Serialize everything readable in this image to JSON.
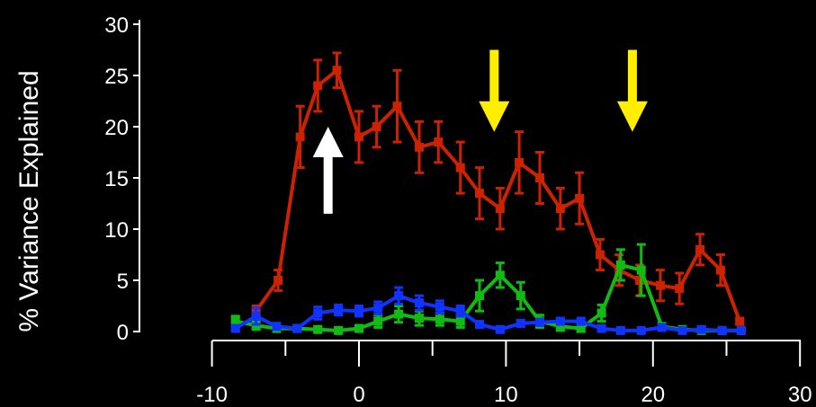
{
  "chart_data": {
    "type": "line",
    "title": "",
    "xlabel": "",
    "ylabel": "% Variance Explained",
    "xlim": [
      -10,
      30
    ],
    "ylim": [
      0,
      30
    ],
    "x_ticks": [
      -10,
      0,
      10,
      20,
      30
    ],
    "x_ticks_minor": [
      -5,
      5,
      15,
      25
    ],
    "y_ticks": [
      0,
      5,
      10,
      15,
      20,
      25,
      30
    ],
    "grid": false,
    "background": "#000000",
    "series": [
      {
        "color": "#cc2200",
        "points": [
          {
            "x": -7,
            "y": 2.0,
            "err": 0.5
          },
          {
            "x": -5.5,
            "y": 5.0,
            "err": 1.0
          },
          {
            "x": -4,
            "y": 19.0,
            "err": 3.0
          },
          {
            "x": -2.8,
            "y": 24.0,
            "err": 2.5
          },
          {
            "x": -1.5,
            "y": 25.5,
            "err": 1.7
          },
          {
            "x": 0,
            "y": 19.0,
            "err": 2.5
          },
          {
            "x": 1.2,
            "y": 20.0,
            "err": 2.0
          },
          {
            "x": 2.6,
            "y": 22.0,
            "err": 3.5
          },
          {
            "x": 4.1,
            "y": 18.0,
            "err": 2.5
          },
          {
            "x": 5.4,
            "y": 18.5,
            "err": 2.0
          },
          {
            "x": 6.9,
            "y": 16.0,
            "err": 2.5
          },
          {
            "x": 8.2,
            "y": 13.5,
            "err": 2.5
          },
          {
            "x": 9.6,
            "y": 12.0,
            "err": 2.0
          },
          {
            "x": 10.9,
            "y": 16.5,
            "err": 3.0
          },
          {
            "x": 12.3,
            "y": 15.0,
            "err": 2.5
          },
          {
            "x": 13.7,
            "y": 12.0,
            "err": 2.0
          },
          {
            "x": 15.0,
            "y": 13.0,
            "err": 2.5
          },
          {
            "x": 16.4,
            "y": 7.5,
            "err": 1.5
          },
          {
            "x": 17.7,
            "y": 6.0,
            "err": 1.5
          },
          {
            "x": 19.1,
            "y": 5.0,
            "err": 1.5
          },
          {
            "x": 20.5,
            "y": 4.5,
            "err": 1.5
          },
          {
            "x": 21.8,
            "y": 4.2,
            "err": 1.5
          },
          {
            "x": 23.2,
            "y": 8.0,
            "err": 1.5
          },
          {
            "x": 24.6,
            "y": 6.0,
            "err": 1.5
          },
          {
            "x": 25.9,
            "y": 1.0,
            "err": 0.3
          }
        ]
      },
      {
        "color": "#11bb11",
        "points": [
          {
            "x": -8.4,
            "y": 1.0,
            "err": 0.5
          },
          {
            "x": -7.0,
            "y": 0.6,
            "err": 0.4
          },
          {
            "x": -5.6,
            "y": 0.3,
            "err": 0.2
          },
          {
            "x": -4.2,
            "y": 0.3,
            "err": 0.2
          },
          {
            "x": -2.8,
            "y": 0.2,
            "err": 0.2
          },
          {
            "x": -1.4,
            "y": 0.1,
            "err": 0.1
          },
          {
            "x": 0,
            "y": 0.3,
            "err": 0.3
          },
          {
            "x": 1.3,
            "y": 1.0,
            "err": 0.6
          },
          {
            "x": 2.7,
            "y": 1.7,
            "err": 0.8
          },
          {
            "x": 4.1,
            "y": 1.3,
            "err": 0.7
          },
          {
            "x": 5.5,
            "y": 1.2,
            "err": 0.6
          },
          {
            "x": 6.9,
            "y": 1.0,
            "err": 0.6
          },
          {
            "x": 8.2,
            "y": 3.5,
            "err": 1.5
          },
          {
            "x": 9.6,
            "y": 5.5,
            "err": 1.2
          },
          {
            "x": 11.0,
            "y": 3.5,
            "err": 1.3
          },
          {
            "x": 12.3,
            "y": 1.0,
            "err": 0.6
          },
          {
            "x": 13.7,
            "y": 0.5,
            "err": 0.4
          },
          {
            "x": 15.1,
            "y": 0.3,
            "err": 0.3
          },
          {
            "x": 16.5,
            "y": 1.8,
            "err": 0.8
          },
          {
            "x": 17.8,
            "y": 6.5,
            "err": 1.5
          },
          {
            "x": 19.2,
            "y": 6.0,
            "err": 2.5
          },
          {
            "x": 20.6,
            "y": 0.5,
            "err": 0.3
          },
          {
            "x": 22.0,
            "y": 0.2,
            "err": 0.2
          },
          {
            "x": 23.3,
            "y": 0.1,
            "err": 0.1
          },
          {
            "x": 24.7,
            "y": 0.1,
            "err": 0.1
          },
          {
            "x": 26.0,
            "y": 0.1,
            "err": 0.1
          }
        ]
      },
      {
        "color": "#1133ff",
        "points": [
          {
            "x": -8.4,
            "y": 0.3,
            "err": 0.2
          },
          {
            "x": -7.0,
            "y": 1.5,
            "err": 0.8
          },
          {
            "x": -5.6,
            "y": 0.5,
            "err": 0.3
          },
          {
            "x": -4.2,
            "y": 0.3,
            "err": 0.2
          },
          {
            "x": -2.8,
            "y": 1.8,
            "err": 0.6
          },
          {
            "x": -1.4,
            "y": 2.1,
            "err": 0.5
          },
          {
            "x": 0,
            "y": 2.0,
            "err": 0.5
          },
          {
            "x": 1.3,
            "y": 2.3,
            "err": 0.6
          },
          {
            "x": 2.7,
            "y": 3.5,
            "err": 0.8
          },
          {
            "x": 4.1,
            "y": 2.8,
            "err": 0.7
          },
          {
            "x": 5.5,
            "y": 2.4,
            "err": 0.6
          },
          {
            "x": 6.9,
            "y": 2.0,
            "err": 0.5
          },
          {
            "x": 8.2,
            "y": 0.7,
            "err": 0.3
          },
          {
            "x": 9.6,
            "y": 0.2,
            "err": 0.2
          },
          {
            "x": 11.0,
            "y": 0.8,
            "err": 0.3
          },
          {
            "x": 12.3,
            "y": 0.9,
            "err": 0.3
          },
          {
            "x": 13.7,
            "y": 1.0,
            "err": 0.3
          },
          {
            "x": 15.1,
            "y": 1.0,
            "err": 0.3
          },
          {
            "x": 16.5,
            "y": 0.3,
            "err": 0.2
          },
          {
            "x": 17.8,
            "y": 0.1,
            "err": 0.1
          },
          {
            "x": 19.2,
            "y": 0.1,
            "err": 0.1
          },
          {
            "x": 20.6,
            "y": 0.4,
            "err": 0.2
          },
          {
            "x": 22.0,
            "y": 0.1,
            "err": 0.1
          },
          {
            "x": 23.3,
            "y": 0.2,
            "err": 0.1
          },
          {
            "x": 24.7,
            "y": 0.1,
            "err": 0.1
          },
          {
            "x": 26.0,
            "y": 0.1,
            "err": 0.1
          }
        ]
      }
    ],
    "annotations": [
      {
        "type": "arrow",
        "direction": "up",
        "color": "#ffffff",
        "x": -2.1,
        "y_tip": 20.0,
        "y_tail": 11.5
      },
      {
        "type": "arrow",
        "direction": "down",
        "color": "#ffee00",
        "x": 9.2,
        "y_tip": 19.5,
        "y_tail": 27.5
      },
      {
        "type": "arrow",
        "direction": "down",
        "color": "#ffee00",
        "x": 18.6,
        "y_tip": 19.5,
        "y_tail": 27.5
      }
    ]
  }
}
